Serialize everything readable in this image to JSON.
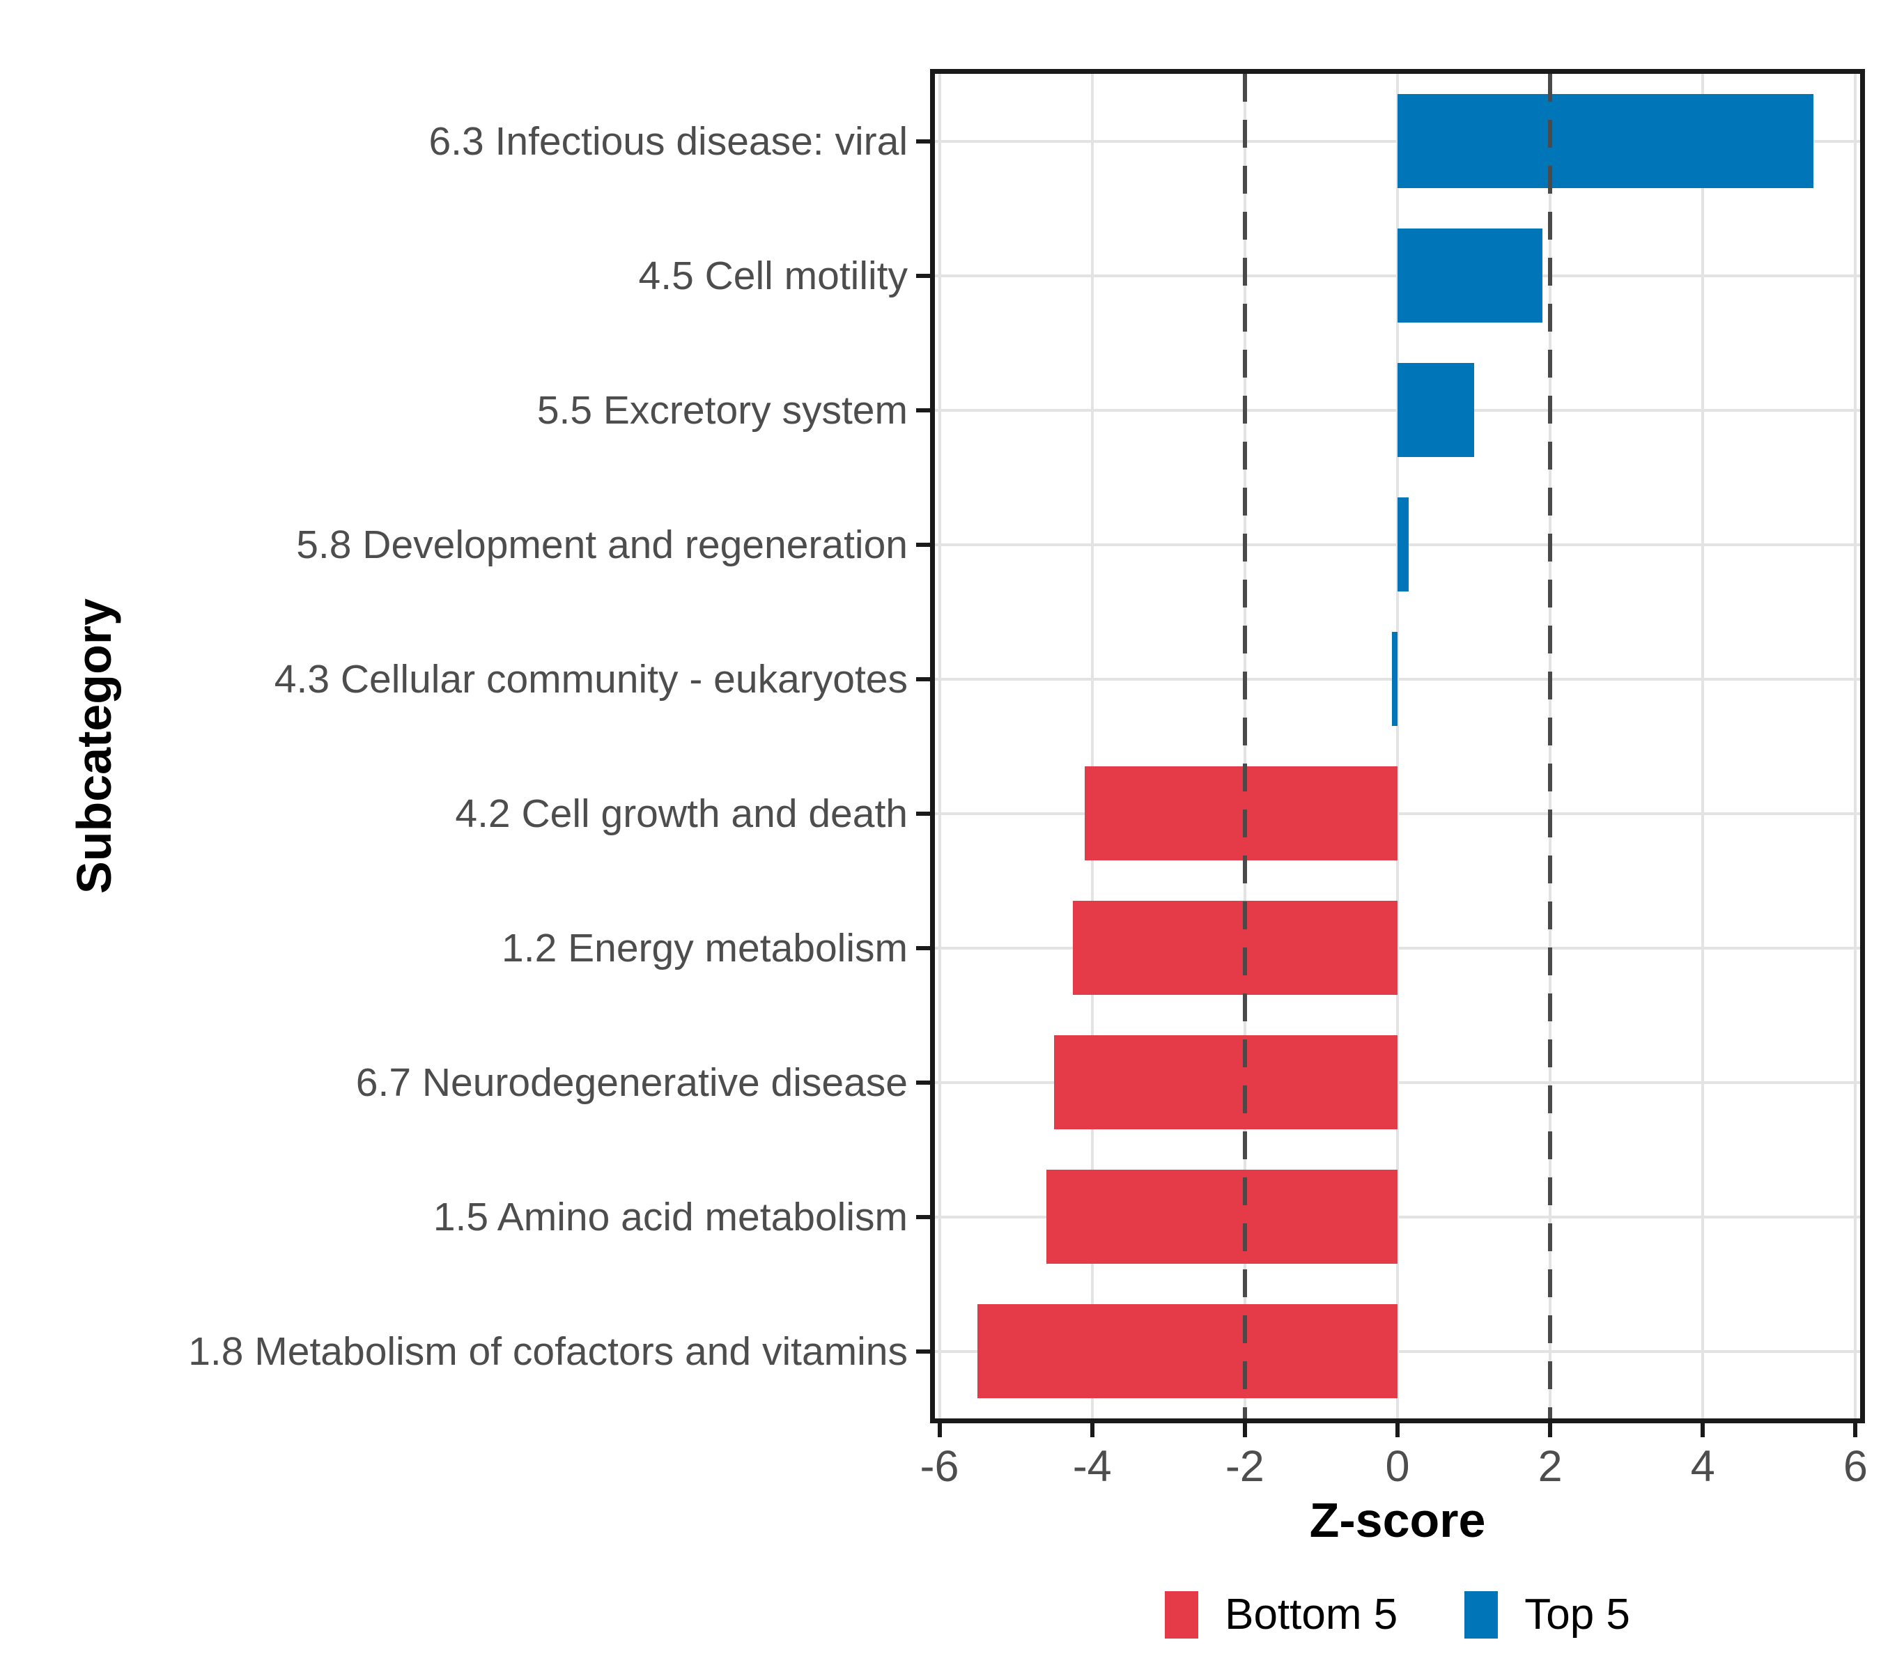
{
  "figure": {
    "x_axis_title": "Z-score",
    "y_axis_title": "Subcategory"
  },
  "legend": {
    "items": [
      {
        "label": "Bottom 5",
        "color": "#E53A48"
      },
      {
        "label": "Top 5",
        "color": "#0076B9"
      }
    ]
  },
  "style": {
    "bar_red": "#E53A48",
    "bar_blue": "#0076B9",
    "gridline": "#E3E3E3",
    "refline": "#4A4A4A",
    "axis_text": "#4D4D4D",
    "panel_border": "#1A1A1A",
    "background": "#FFFFFF"
  },
  "chart_data": {
    "type": "bar",
    "orientation": "horizontal",
    "xlabel": "Z-score",
    "ylabel": "Subcategory",
    "xlim": [
      -6,
      6
    ],
    "x_ticks": [
      -6,
      -4,
      -2,
      0,
      2,
      4,
      6
    ],
    "reference_lines": [
      -2,
      2
    ],
    "grid": true,
    "legend_position": "bottom",
    "categories": [
      "6.3 Infectious disease: viral",
      "4.5 Cell motility",
      "5.5 Excretory system",
      "5.8 Development and regeneration",
      "4.3 Cellular community - eukaryotes",
      "4.2 Cell growth and death",
      "1.2 Energy metabolism",
      "6.7 Neurodegenerative disease",
      "1.5 Amino acid metabolism",
      "1.8 Metabolism of cofactors and vitamins"
    ],
    "values": [
      5.45,
      1.9,
      1.0,
      0.15,
      -0.07,
      -4.1,
      -4.25,
      -4.5,
      -4.6,
      -5.5
    ],
    "groups": [
      "Top 5",
      "Top 5",
      "Top 5",
      "Top 5",
      "Top 5",
      "Bottom 5",
      "Bottom 5",
      "Bottom 5",
      "Bottom 5",
      "Bottom 5"
    ],
    "colors": {
      "Top 5": "#0076B9",
      "Bottom 5": "#E53A48"
    }
  }
}
